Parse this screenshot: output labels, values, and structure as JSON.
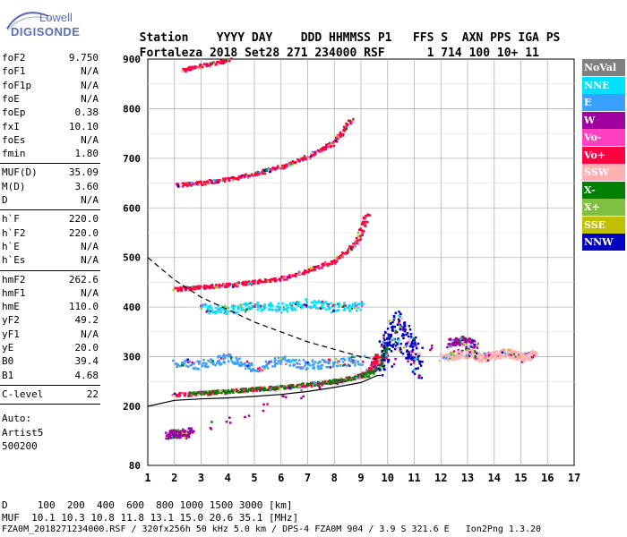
{
  "logo": {
    "brand": "Lowell",
    "product": "DIGISONDE"
  },
  "header": {
    "labels": [
      "Station",
      "YYYY",
      "DAY",
      "DDD",
      "HHMMSS",
      "P1",
      "FFS",
      "S",
      "AXN",
      "PPS",
      "IGA",
      "PS"
    ],
    "values": [
      "Fortaleza",
      "2018",
      "Set28",
      "271",
      "234000",
      "RSF",
      "1",
      "714",
      "100",
      "10+",
      "11"
    ]
  },
  "params_group1": [
    {
      "k": "foF2",
      "v": "9.750"
    },
    {
      "k": "foF1",
      "v": "N/A"
    },
    {
      "k": "foF1p",
      "v": "N/A"
    },
    {
      "k": "foE",
      "v": "N/A"
    },
    {
      "k": "foEp",
      "v": "0.38"
    },
    {
      "k": "fxI",
      "v": "10.10"
    },
    {
      "k": "foEs",
      "v": "N/A"
    },
    {
      "k": "fmin",
      "v": "1.80"
    }
  ],
  "params_group2": [
    {
      "k": "MUF(D)",
      "v": "35.09"
    },
    {
      "k": "M(D)",
      "v": "3.60"
    },
    {
      "k": "D",
      "v": "N/A"
    }
  ],
  "params_group3": [
    {
      "k": "h`F",
      "v": "220.0"
    },
    {
      "k": "h`F2",
      "v": "220.0"
    },
    {
      "k": "h`E",
      "v": "N/A"
    },
    {
      "k": "h`Es",
      "v": "N/A"
    }
  ],
  "params_group4": [
    {
      "k": "hmF2",
      "v": "262.6"
    },
    {
      "k": "hmF1",
      "v": "N/A"
    },
    {
      "k": "hmE",
      "v": "110.0"
    },
    {
      "k": "yF2",
      "v": "49.2"
    },
    {
      "k": "yF1",
      "v": "N/A"
    },
    {
      "k": "yE",
      "v": "20.0"
    },
    {
      "k": "B0",
      "v": "39.4"
    },
    {
      "k": "B1",
      "v": "4.68"
    }
  ],
  "clevel": {
    "k": "C-level",
    "v": "22"
  },
  "auto": [
    "Auto:",
    "Artist5",
    "500200"
  ],
  "legend": [
    {
      "label": "NoVal",
      "color": "#808080"
    },
    {
      "label": "NNE",
      "color": "#00e0ff"
    },
    {
      "label": "E",
      "color": "#3aa0ff"
    },
    {
      "label": "W",
      "color": "#a000a0"
    },
    {
      "label": "Vo-",
      "color": "#ff40c0"
    },
    {
      "label": "Vo+",
      "color": "#ff0040"
    },
    {
      "label": "SSW",
      "color": "#ffb0b0"
    },
    {
      "label": "X-",
      "color": "#008000"
    },
    {
      "label": "X+",
      "color": "#80c040"
    },
    {
      "label": "SSE",
      "color": "#c0c000"
    },
    {
      "label": "NNW",
      "color": "#0000c0"
    }
  ],
  "footer": {
    "d_row": "D     100  200  400  600  800 1000 1500 3000 [km]",
    "muf_row": "MUF  10.1 10.3 10.8 11.8 13.1 15.0 20.6 35.1 [MHz]",
    "file_row": "FZA0M_2018271234000.RSF / 320fx256h 50 kHz 5.0 km / DPS-4 FZA0M 904 / 3.9 S 321.6 E   Ion2Png 1.3.20"
  },
  "chart_data": {
    "type": "scatter",
    "x_ticks": [
      1,
      2,
      3,
      4,
      5,
      6,
      7,
      8,
      9,
      10,
      11,
      12,
      13,
      14,
      15,
      16,
      17
    ],
    "y_ticks": [
      80,
      200,
      300,
      400,
      500,
      600,
      700,
      800,
      900
    ],
    "xlim": [
      1,
      17
    ],
    "ylim": [
      80,
      900
    ],
    "grid": true,
    "legend_position": "right",
    "traces": {
      "o_trace": {
        "color": "#ff0040",
        "x": [
          1.9,
          3,
          4,
          5,
          6,
          7,
          8,
          9,
          9.4,
          9.6
        ],
        "y": [
          225,
          228,
          232,
          236,
          240,
          245,
          252,
          262,
          280,
          305
        ]
      },
      "x_trace": {
        "color": "#008000",
        "x": [
          2.5,
          4,
          6,
          8,
          9.2,
          9.7,
          9.9
        ],
        "y": [
          226,
          232,
          240,
          252,
          265,
          285,
          320
        ]
      },
      "second_hop": {
        "color": "#ff0040",
        "x": [
          2,
          3,
          4,
          5,
          6,
          7,
          8,
          8.8,
          9.2
        ],
        "y": [
          438,
          442,
          446,
          452,
          460,
          475,
          495,
          530,
          590
        ]
      },
      "third_hop": {
        "color": "#ff0040",
        "x": [
          2.1,
          3,
          4,
          5,
          6,
          7,
          8,
          8.6
        ],
        "y": [
          648,
          652,
          660,
          670,
          685,
          705,
          735,
          780
        ]
      },
      "fourth_hop": {
        "color": "#ff0040",
        "x": [
          2.3,
          3,
          4
        ],
        "y": [
          880,
          888,
          900
        ]
      },
      "spread_f": {
        "color": "#0000c0",
        "x": [
          9.7,
          10,
          10.3,
          10.6,
          10.9,
          11.2
        ],
        "y": [
          300,
          330,
          360,
          340,
          310,
          290
        ]
      },
      "ssw_tail": {
        "color": "#ffb0b0",
        "x": [
          12,
          12.5,
          13,
          13.5,
          14,
          14.5,
          15,
          15.5
        ],
        "y": [
          300,
          305,
          310,
          300,
          305,
          310,
          300,
          305
        ]
      },
      "e_echoes": {
        "color": "#3aa0ff",
        "x": [
          2,
          3,
          4,
          5,
          6,
          7,
          8,
          9
        ],
        "y": [
          290,
          285,
          300,
          280,
          295,
          285,
          290,
          295
        ]
      },
      "nne_400": {
        "color": "#00e0ff",
        "x": [
          3,
          4,
          5,
          6,
          7,
          8,
          9
        ],
        "y": [
          400,
          395,
          405,
          400,
          410,
          400,
          405
        ]
      },
      "w_echoes": {
        "color": "#a000a0",
        "x": [
          1.7,
          2,
          2.3,
          2.6,
          12.3,
          12.8,
          13.3
        ],
        "y": [
          145,
          148,
          146,
          150,
          330,
          335,
          325
        ]
      }
    },
    "profile_hmf2": {
      "color": "#000000",
      "x": [
        1,
        2,
        3,
        4,
        5,
        6,
        7,
        8,
        9,
        9.6,
        9.75
      ],
      "y": [
        200,
        212,
        215,
        217,
        220,
        224,
        230,
        238,
        248,
        262,
        262.6
      ]
    },
    "dashed_muf": {
      "color": "#000000",
      "x": [
        1,
        2,
        3,
        4,
        5,
        6,
        7,
        8,
        9,
        9.6
      ],
      "y": [
        500,
        455,
        420,
        395,
        370,
        350,
        330,
        315,
        300,
        295
      ]
    }
  }
}
